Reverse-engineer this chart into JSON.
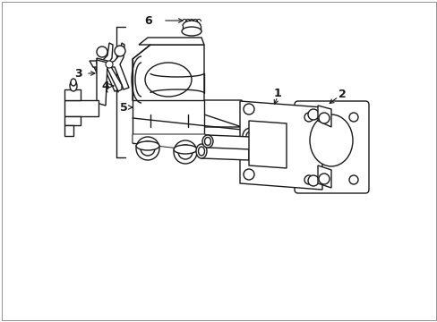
{
  "background_color": "#ffffff",
  "line_color": "#1a1a1a",
  "fig_width": 4.89,
  "fig_height": 3.6,
  "dpi": 100,
  "comp1_label": "1",
  "comp2_label": "2",
  "comp3_label": "3",
  "comp4_label": "4",
  "comp5_label": "5",
  "comp6_label": "6"
}
